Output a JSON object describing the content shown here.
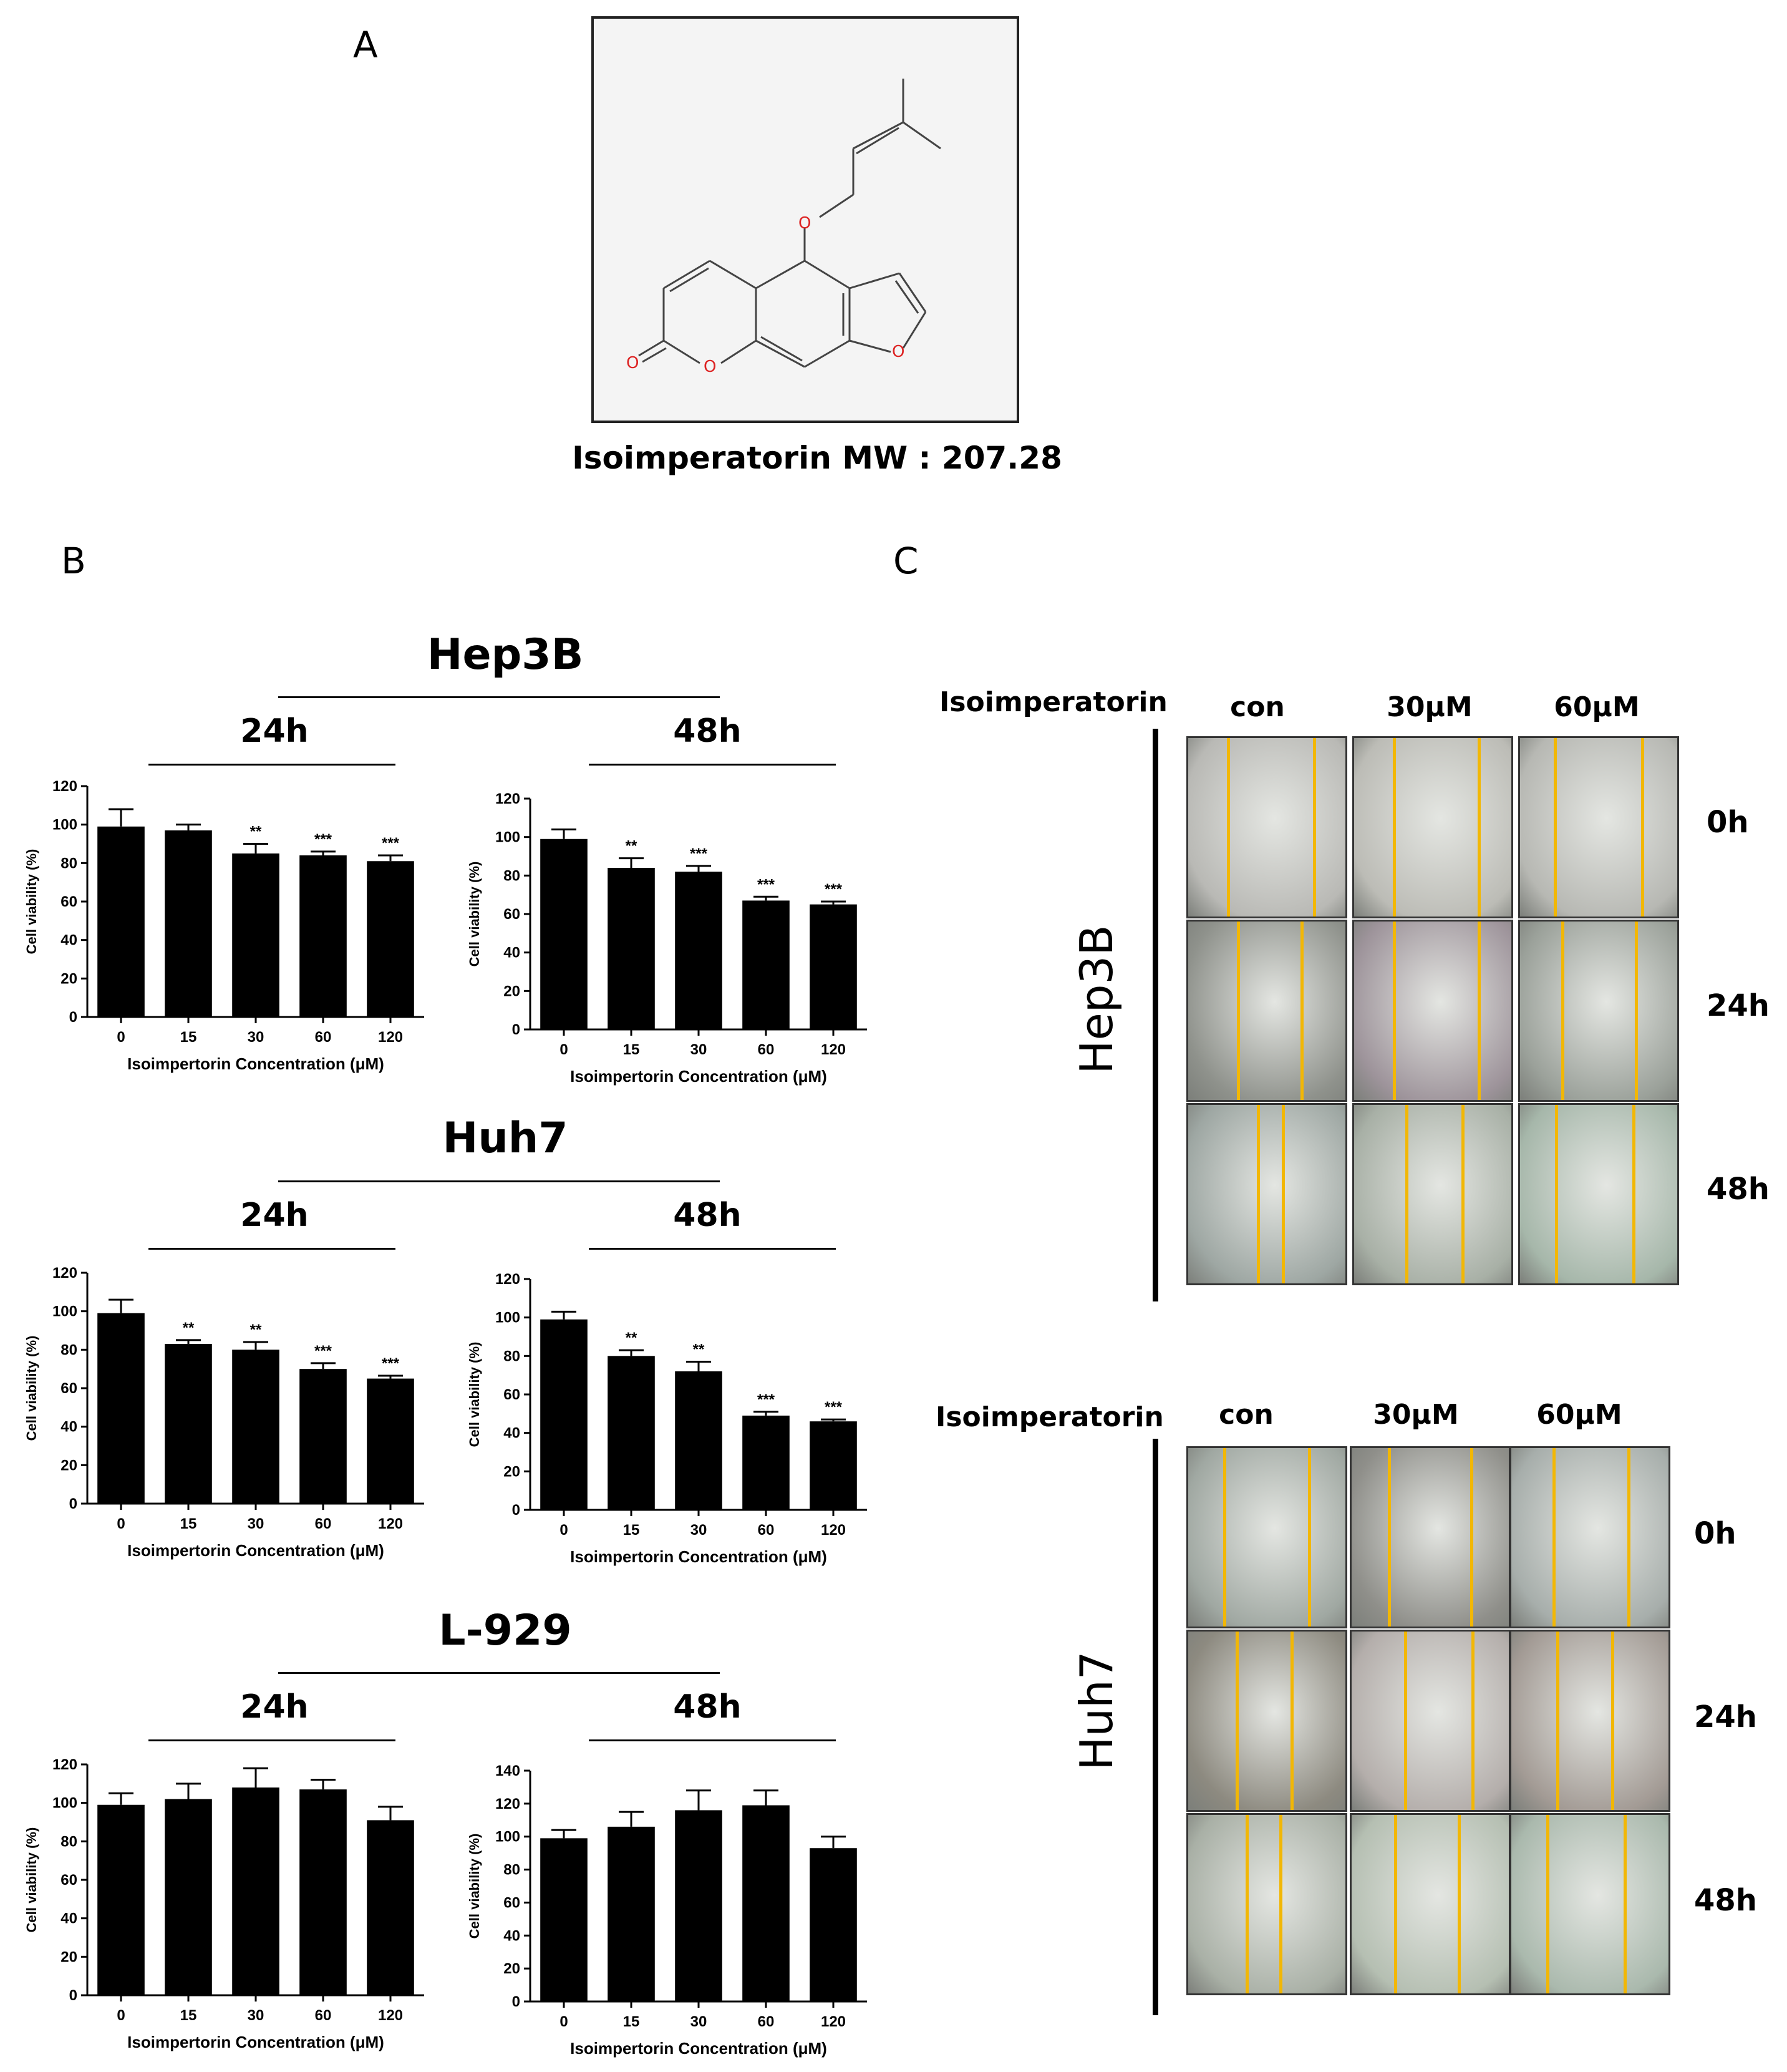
{
  "panels": {
    "a": "A",
    "b": "B",
    "c": "C"
  },
  "molecule": {
    "caption": "Isoimperatorin  MW : 207.28",
    "atom_label": "O"
  },
  "panel_b": {
    "groups": [
      {
        "cell": "Hep3B"
      },
      {
        "cell": "Huh7"
      },
      {
        "cell": "L-929"
      }
    ]
  },
  "chart_data": [
    {
      "type": "bar",
      "group": "Hep3B",
      "title": "24h",
      "categories": [
        "0",
        "15",
        "30",
        "60",
        "120"
      ],
      "values": [
        99,
        97,
        85,
        84,
        81
      ],
      "errors": [
        9,
        3,
        5,
        2,
        3
      ],
      "significance": [
        "",
        "",
        "**",
        "***",
        "***"
      ],
      "xlabel": "Isoimpertorin Concentration (μM)",
      "ylabel": "Cell viability (%)",
      "ylim": [
        0,
        120
      ],
      "yticks": [
        "0",
        "20",
        "40",
        "60",
        "80",
        "100",
        "120"
      ]
    },
    {
      "type": "bar",
      "group": "Hep3B",
      "title": "48h",
      "categories": [
        "0",
        "15",
        "30",
        "60",
        "120"
      ],
      "values": [
        99,
        84,
        82,
        67,
        65
      ],
      "errors": [
        5,
        5,
        3,
        2,
        1.5
      ],
      "significance": [
        "",
        "**",
        "***",
        "***",
        "***"
      ],
      "xlabel": "Isoimpertorin Concentration (μM)",
      "ylabel": "Cell viability (%)",
      "ylim": [
        0,
        120
      ],
      "yticks": [
        "0",
        "20",
        "40",
        "60",
        "80",
        "100",
        "120"
      ]
    },
    {
      "type": "bar",
      "group": "Huh7",
      "title": "24h",
      "categories": [
        "0",
        "15",
        "30",
        "60",
        "120"
      ],
      "values": [
        99,
        83,
        80,
        70,
        65
      ],
      "errors": [
        7,
        2,
        4,
        3,
        1.5
      ],
      "significance": [
        "",
        "**",
        "**",
        "***",
        "***"
      ],
      "xlabel": "Isoimpertorin Concentration (μM)",
      "ylabel": "Cell viability (%)",
      "ylim": [
        0,
        120
      ],
      "yticks": [
        "0",
        "20",
        "40",
        "60",
        "80",
        "100",
        "120"
      ]
    },
    {
      "type": "bar",
      "group": "Huh7",
      "title": "48h",
      "categories": [
        "0",
        "15",
        "30",
        "60",
        "120"
      ],
      "values": [
        99,
        80,
        72,
        49,
        46
      ],
      "errors": [
        4,
        3,
        5,
        2,
        1
      ],
      "significance": [
        "",
        "**",
        "**",
        "***",
        "***"
      ],
      "xlabel": "Isoimpertorin Concentration (μM)",
      "ylabel": "Cell viability (%)",
      "ylim": [
        0,
        120
      ],
      "yticks": [
        "0",
        "20",
        "40",
        "60",
        "80",
        "100",
        "120"
      ]
    },
    {
      "type": "bar",
      "group": "L-929",
      "title": "24h",
      "categories": [
        "0",
        "15",
        "30",
        "60",
        "120"
      ],
      "values": [
        99,
        102,
        108,
        107,
        91
      ],
      "errors": [
        6,
        8,
        10,
        5,
        7
      ],
      "significance": [
        "",
        "",
        "",
        "",
        ""
      ],
      "xlabel": "Isoimpertorin Concentration (μM)",
      "ylabel": "Cell viability (%)",
      "ylim": [
        0,
        120
      ],
      "yticks": [
        "0",
        "20",
        "40",
        "60",
        "80",
        "100",
        "120"
      ]
    },
    {
      "type": "bar",
      "group": "L-929",
      "title": "48h",
      "categories": [
        "0",
        "15",
        "30",
        "60",
        "120"
      ],
      "values": [
        99,
        106,
        116,
        119,
        93
      ],
      "errors": [
        5,
        9,
        12,
        9,
        7
      ],
      "significance": [
        "",
        "",
        "",
        "",
        ""
      ],
      "xlabel": "Isoimpertorin Concentration (μM)",
      "ylabel": "Cell viability (%)",
      "ylim": [
        0,
        140
      ],
      "yticks": [
        "0",
        "20",
        "40",
        "60",
        "80",
        "100",
        "120",
        "140"
      ]
    }
  ],
  "panel_c": {
    "blocks": [
      {
        "cell": "Hep3B",
        "treatment_label": "Isoimperatorin",
        "columns": [
          "con",
          "30μM",
          "60μM"
        ],
        "rows": [
          "0h",
          "24h",
          "48h"
        ],
        "tints": [
          [
            "#b9b9b5",
            "#bcbcb6",
            "#b7b8b3"
          ],
          [
            "#8f928c",
            "#9e949b",
            "#9ba19a"
          ],
          [
            "#9ea7a3",
            "#a8b0a6",
            "#a6b7aa"
          ]
        ]
      },
      {
        "cell": "Huh7",
        "treatment_label": "Isoimperatorin",
        "columns": [
          "con",
          "30μM",
          "60μM"
        ],
        "rows": [
          "0h",
          "24h",
          "48h"
        ],
        "tints": [
          [
            "#a0a8a2",
            "#8f8f8a",
            "#a7aeab"
          ],
          [
            "#8d8a80",
            "#b4aeab",
            "#a39b95"
          ],
          [
            "#a9b0a6",
            "#b5bfb2",
            "#aab9ad"
          ]
        ]
      }
    ]
  }
}
